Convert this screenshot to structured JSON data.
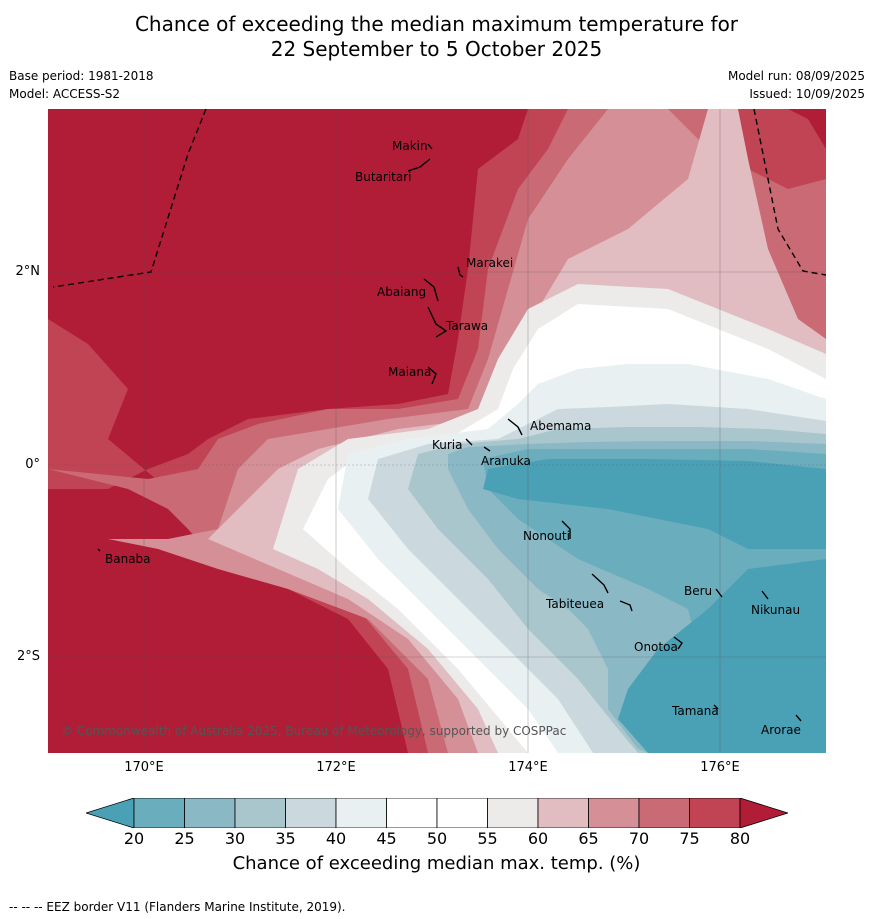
{
  "header": {
    "title_line1": "Chance of exceeding the median maximum temperature for",
    "title_line2": "22 September to 5 October 2025"
  },
  "meta": {
    "base_period": "Base period: 1981-2018",
    "model": "Model: ACCESS-S2",
    "model_run": "Model run: 08/09/2025",
    "issued": "Issued: 10/09/2025"
  },
  "map": {
    "lat_ticks": [
      "2°N",
      "0°",
      "2°S"
    ],
    "lon_ticks": [
      "170°E",
      "172°E",
      "174°E",
      "176°E"
    ],
    "islands": [
      {
        "name": "Makin"
      },
      {
        "name": "Butaritari"
      },
      {
        "name": "Marakei"
      },
      {
        "name": "Abaiang"
      },
      {
        "name": "Tarawa"
      },
      {
        "name": "Maiana"
      },
      {
        "name": "Abemama"
      },
      {
        "name": "Kuria"
      },
      {
        "name": "Aranuka"
      },
      {
        "name": "Nonouti"
      },
      {
        "name": "Banaba"
      },
      {
        "name": "Beru"
      },
      {
        "name": "Tabiteuea"
      },
      {
        "name": "Nikunau"
      },
      {
        "name": "Onotoa"
      },
      {
        "name": "Tamana"
      },
      {
        "name": "Arorae"
      }
    ],
    "copyright": "© Commonwealth of Australia 2025, Bureau of Meteorology, supported by COSPPac"
  },
  "colorbar": {
    "ticks": [
      "20",
      "25",
      "30",
      "35",
      "40",
      "45",
      "50",
      "55",
      "60",
      "65",
      "70",
      "75",
      "80"
    ],
    "colors": [
      "#4aa0b4",
      "#6aadbd",
      "#8ab8c4",
      "#a8c6cc",
      "#cbd9de",
      "#e9f0f2",
      "#ffffff",
      "#ffffff",
      "#ecebea",
      "#e1bcc1",
      "#d48f97",
      "#c96a74",
      "#c04454",
      "#b11c37"
    ],
    "label": "Chance of exceeding median max. temp. (%)"
  },
  "footer": "--  --  -- EEZ border V11 (Flanders Marine Institute, 2019)."
}
